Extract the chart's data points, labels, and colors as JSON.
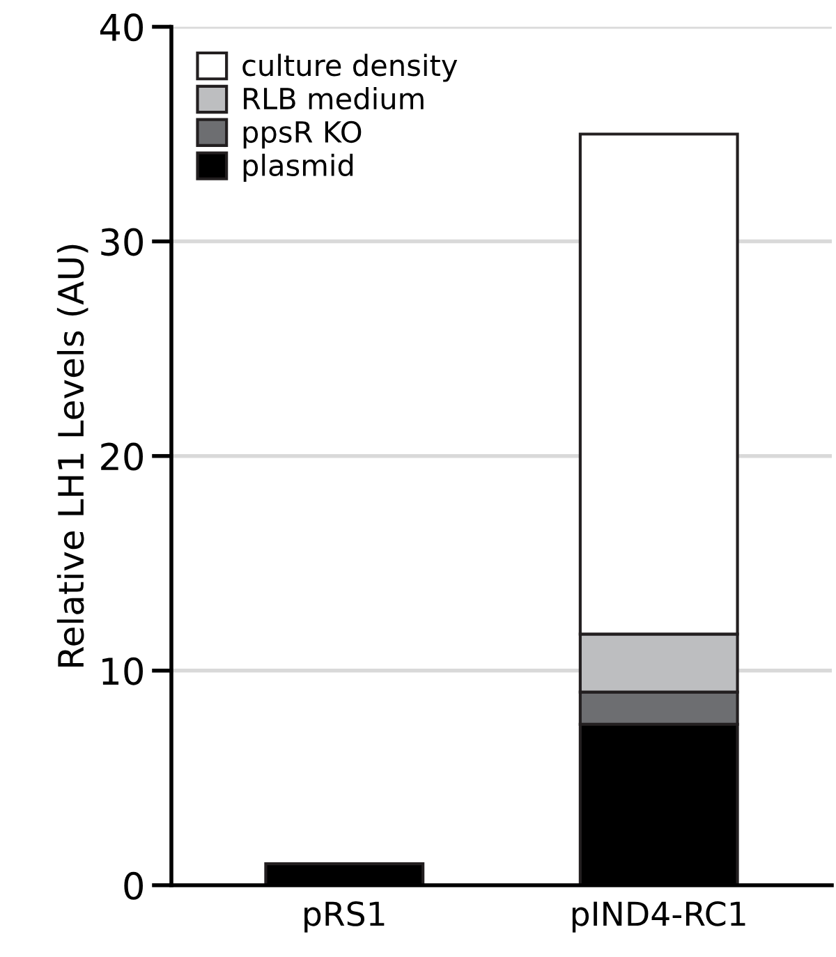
{
  "chart_data": {
    "type": "bar",
    "stacked": true,
    "ylabel": "Relative LH1 Levels (AU)",
    "categories": [
      "pRS1",
      "pIND4-RC1"
    ],
    "series": [
      {
        "name": "plasmid",
        "color": "#000000",
        "values": [
          1,
          7.5
        ]
      },
      {
        "name": "ppsR KO",
        "color": "#6d6e71",
        "values": [
          null,
          1.5
        ]
      },
      {
        "name": "RLB medium",
        "color": "#bdbec0",
        "values": [
          null,
          2.7
        ]
      },
      {
        "name": "culture density",
        "color": "#ffffff",
        "values": [
          null,
          23.3
        ]
      }
    ],
    "ylim": [
      0,
      40
    ],
    "yticks": [
      0,
      10,
      20,
      30,
      40
    ],
    "grid": "y",
    "legend": "top left"
  }
}
